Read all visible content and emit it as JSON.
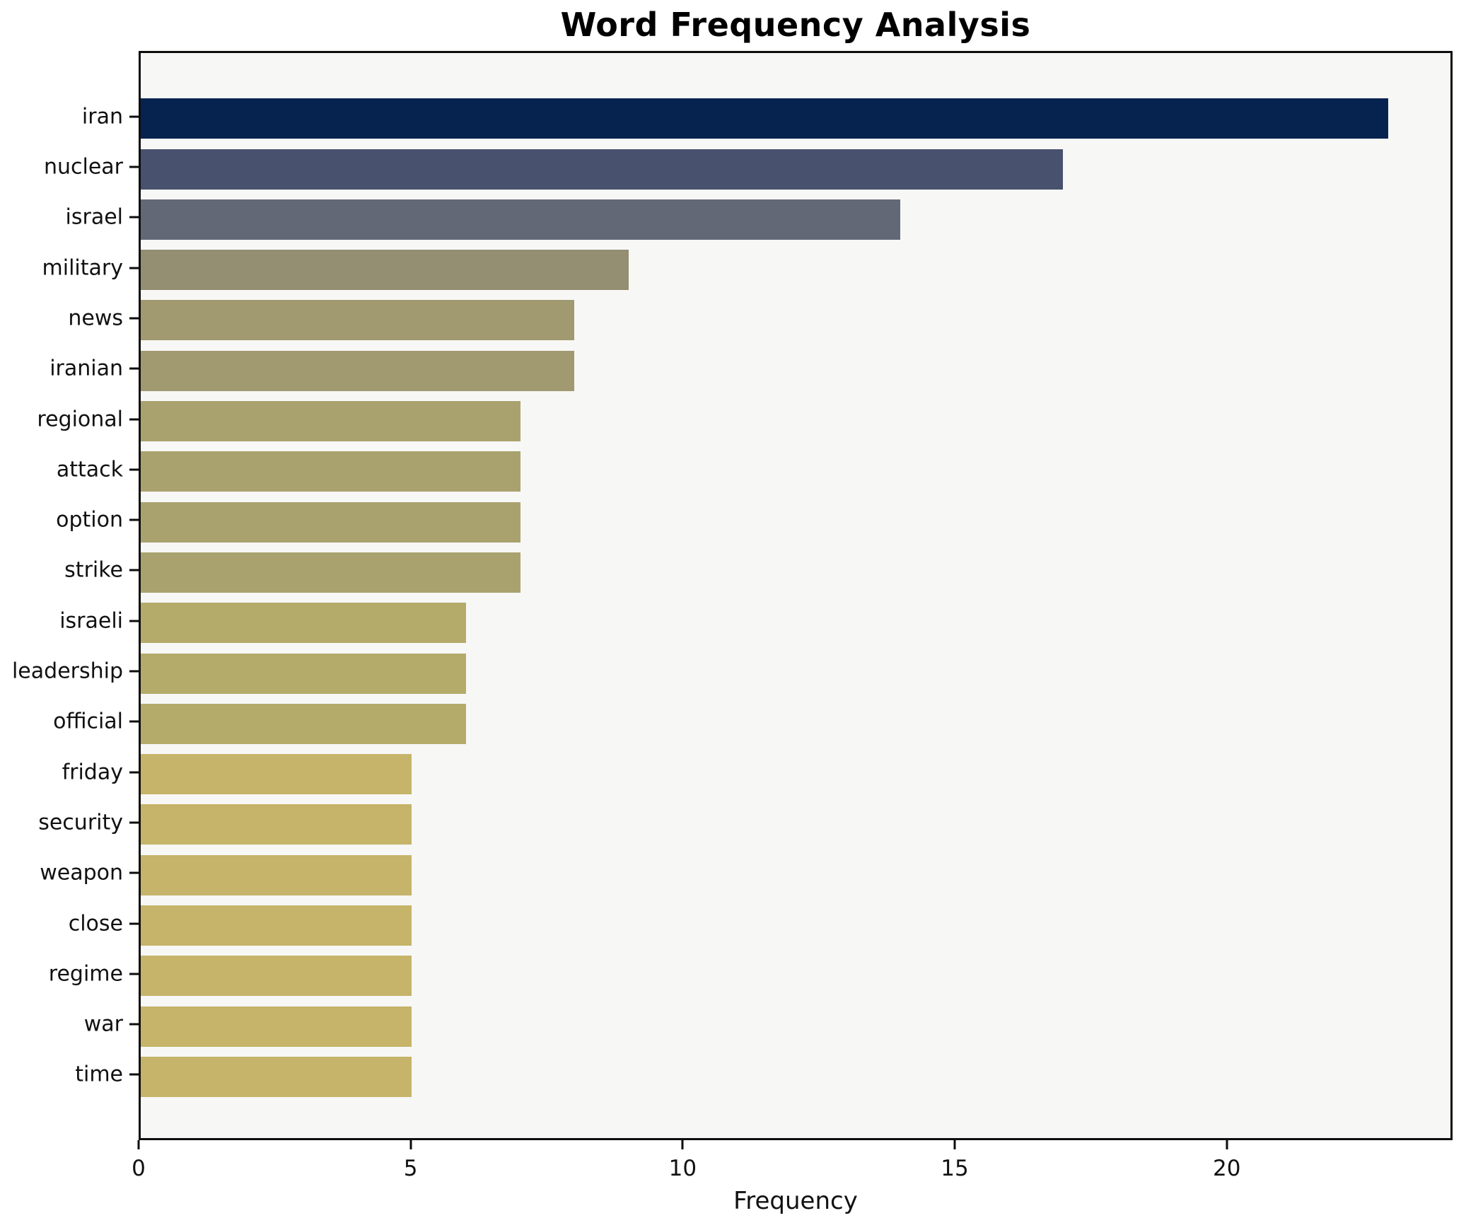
{
  "chart_data": {
    "type": "bar",
    "orientation": "horizontal",
    "title": "Word Frequency Analysis",
    "xlabel": "Frequency",
    "ylabel": "",
    "categories": [
      "iran",
      "nuclear",
      "israel",
      "military",
      "news",
      "iranian",
      "regional",
      "attack",
      "option",
      "strike",
      "israeli",
      "leadership",
      "official",
      "friday",
      "security",
      "weapon",
      "close",
      "regime",
      "war",
      "time"
    ],
    "values": [
      23,
      17,
      14,
      9,
      8,
      8,
      7,
      7,
      7,
      7,
      6,
      6,
      6,
      5,
      5,
      5,
      5,
      5,
      5,
      5
    ],
    "bar_colors": [
      "#062350",
      "#48516d",
      "#636877",
      "#948e72",
      "#a19970",
      "#a19970",
      "#aaa26e",
      "#aaa26e",
      "#aaa26e",
      "#aaa26e",
      "#b4ab6b",
      "#b4ab6b",
      "#b4ab6b",
      "#c5b469",
      "#c5b469",
      "#c5b469",
      "#c5b469",
      "#c5b469",
      "#c5b469",
      "#c5b469"
    ],
    "xlim": [
      0,
      24.15
    ],
    "xticks": [
      0,
      5,
      10,
      15,
      20
    ],
    "grid": false,
    "legend_position": "none",
    "plot_background": "#f7f7f6",
    "figure_background": "#ffffff",
    "spine_color": "#0d0d0d"
  }
}
